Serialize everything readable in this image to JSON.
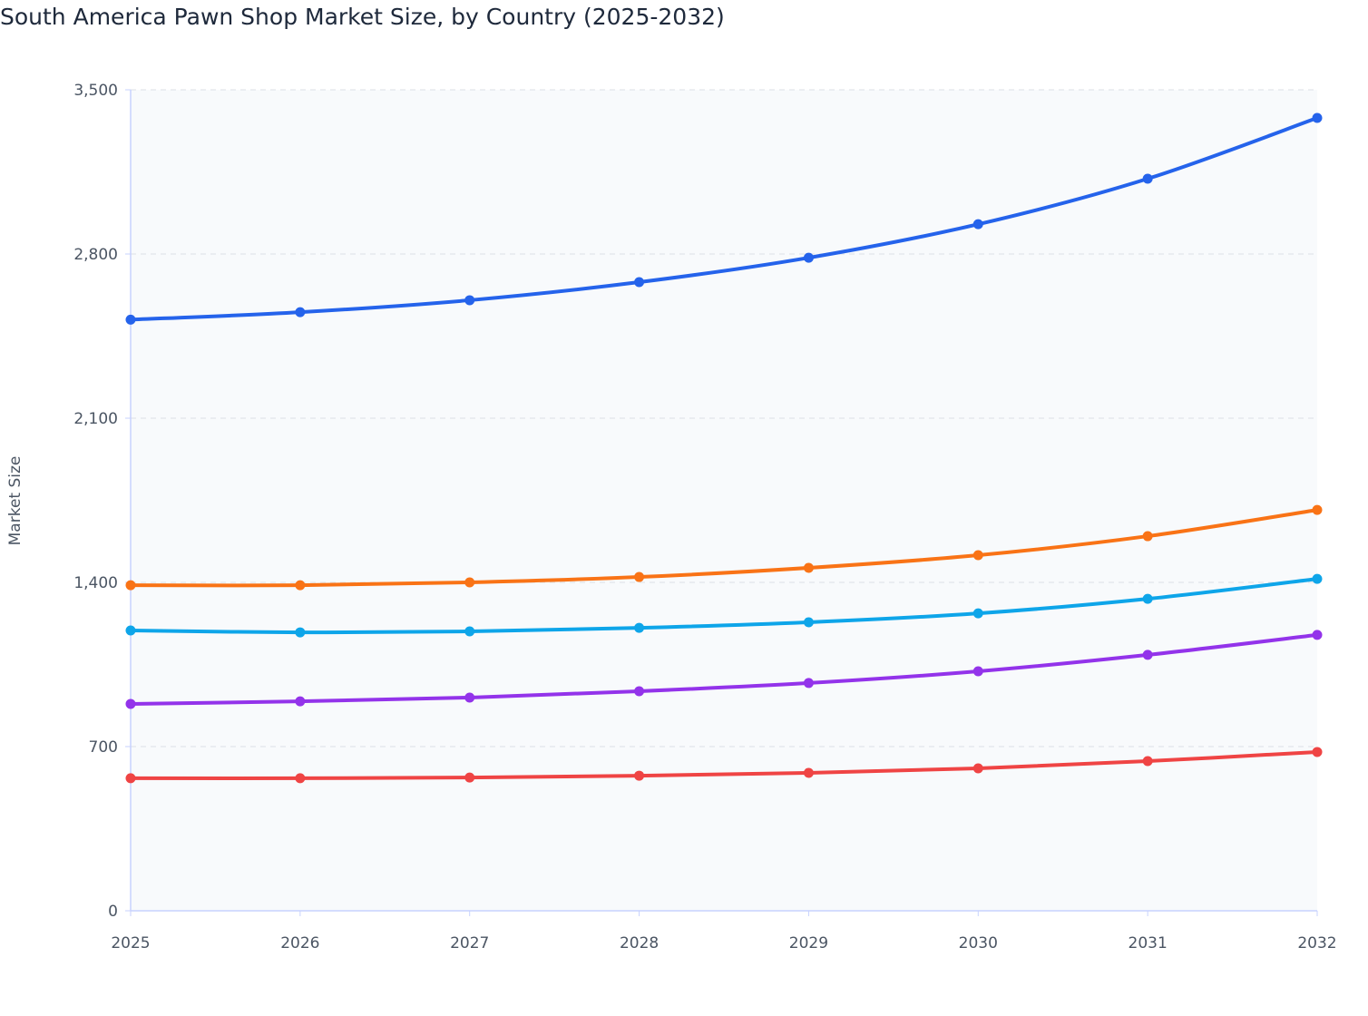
{
  "chart_data": {
    "type": "line",
    "title": "South America Pawn Shop Market Size, by Country (2025-2032)",
    "xlabel": "",
    "ylabel": "Market Size",
    "x": [
      "2025",
      "2026",
      "2027",
      "2028",
      "2029",
      "2030",
      "2031",
      "2032"
    ],
    "ylim": [
      0,
      3500
    ],
    "yticks": [
      0,
      700,
      1400,
      2100,
      2800,
      3500
    ],
    "ytick_labels": [
      "0",
      "700",
      "1,400",
      "2,100",
      "2,800",
      "3,500"
    ],
    "grid": true,
    "legend": "none",
    "series": [
      {
        "color": "#2563eb",
        "values": [
          2520,
          2552,
          2603,
          2680,
          2784,
          2927,
          3121,
          3380
        ]
      },
      {
        "color": "#f97316",
        "values": [
          1388,
          1388,
          1400,
          1423,
          1462,
          1516,
          1597,
          1709
        ]
      },
      {
        "color": "#0ea5e9",
        "values": [
          1195,
          1187,
          1191,
          1206,
          1230,
          1268,
          1330,
          1415
        ]
      },
      {
        "color": "#9333ea",
        "values": [
          882,
          893,
          909,
          936,
          971,
          1021,
          1091,
          1176
        ]
      },
      {
        "color": "#ef4444",
        "values": [
          565,
          565,
          568,
          576,
          588,
          607,
          638,
          677
        ]
      }
    ]
  }
}
